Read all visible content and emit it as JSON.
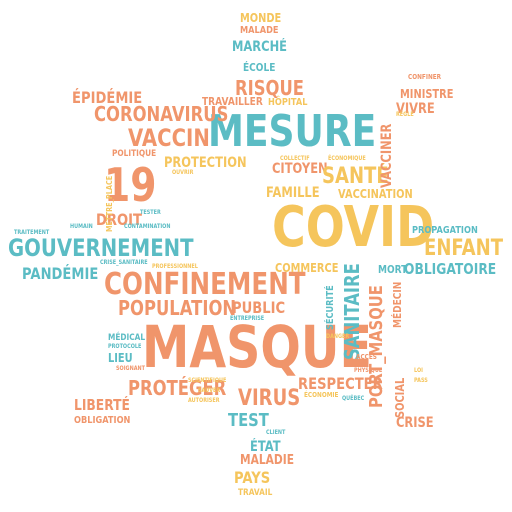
{
  "palette": {
    "teal": "#5bbcc4",
    "orange": "#f0956b",
    "yellow": "#f5c55c"
  },
  "words": [
    "MONDE",
    "MALADE",
    "MARCHÉ",
    "ÉCOLE",
    "RISQUE",
    "HÔPITAL",
    "TRAVAILLER",
    "ÉPIDÉMIE",
    "CORONAVIRUS",
    "MESURE",
    "VACCIN",
    "POLITIQUE",
    "PROTECTION",
    "CITOYEN",
    "FAMILLE",
    "SANTÉ",
    "MINISTRE",
    "VIVRE",
    "VACCINER",
    "VACCINATION",
    "19",
    "DROIT",
    "COVID",
    "ENFANT",
    "PROPAGATION",
    "OBLIGATOIRE",
    "GOUVERNEMENT",
    "TRAITEMENT",
    "PANDÉMIE",
    "CONFINEMENT",
    "COMMERCE",
    "MORT",
    "POPULATION",
    "PUBLIC",
    "SANITAIRE",
    "SÉCURITÉ",
    "PORT_MASQUE",
    "MÉDECIN",
    "MASQUE",
    "MÉDICAL",
    "LIEU",
    "RESPECTER",
    "PROTÉGER",
    "LIBERTÉ",
    "VIRUS",
    "TEST",
    "SOCIAL",
    "CRISE",
    "ÉTAT",
    "MALADIE",
    "PAYS",
    "TRAVAIL",
    "OBLIGATION",
    "ÉCONOMIE",
    "DANGER",
    "ACCÈS",
    "CONFINER",
    "METTRE_PLACE",
    "TESTER",
    "CONTAMINATION",
    "CRISE_SANITAIRE",
    "SCIENTIFIQUE",
    "SAUVER",
    "AUTORISER",
    "PROTOCOLE",
    "SOIGNANT",
    "ENTREPRISE",
    "QUÉBEC",
    "PHYSIQUE",
    "CLIENT",
    "PROFESSIONNEL",
    "HUMAIN",
    "OUVRIR",
    "ÉCONOMIQUE",
    "COLLECTIF",
    "RÈGLE",
    "LOI",
    "PASS"
  ]
}
